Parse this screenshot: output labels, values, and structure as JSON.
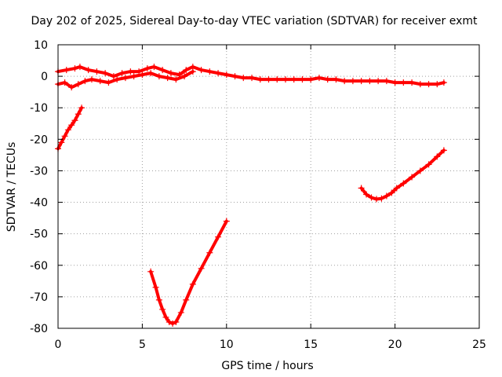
{
  "chart_data": {
    "type": "scatter",
    "title": "Day 202 of 2025, Sidereal Day-to-day VTEC variation (SDTVAR) for receiver exmt",
    "xlabel": "GPS time / hours",
    "ylabel": "SDTVAR / TECUs",
    "xlim": [
      0,
      25
    ],
    "ylim": [
      -80,
      10
    ],
    "xticks": [
      0,
      5,
      10,
      15,
      20,
      25
    ],
    "yticks": [
      10,
      0,
      -10,
      -20,
      -30,
      -40,
      -50,
      -60,
      -70,
      -80
    ],
    "grid": true,
    "legend": "none",
    "marker": "plus",
    "series_color": "#ff0000",
    "series": [
      {
        "name": "trace-near-zero-upper",
        "x": [
          0.0,
          0.5,
          1.0,
          1.3,
          1.8,
          2.3,
          2.8,
          3.3,
          3.8,
          4.3,
          4.8,
          5.3,
          5.7,
          6.2,
          6.7,
          7.2,
          7.6,
          8.0,
          8.5,
          9.0,
          9.5,
          10.0,
          10.5,
          11.0,
          11.5,
          12.0,
          12.5,
          13.0,
          13.5,
          14.0,
          14.5,
          15.0,
          15.5,
          16.0,
          16.5,
          17.0,
          17.5,
          18.0,
          18.5,
          19.0,
          19.5,
          20.0,
          20.5,
          21.0,
          21.5,
          22.0,
          22.5,
          22.9
        ],
        "y": [
          1.5,
          2.0,
          2.5,
          3.0,
          2.0,
          1.5,
          1.0,
          0.0,
          1.0,
          1.5,
          1.5,
          2.5,
          3.0,
          2.0,
          1.0,
          0.5,
          2.0,
          3.0,
          2.0,
          1.5,
          1.0,
          0.5,
          0.0,
          -0.5,
          -0.5,
          -1.0,
          -1.0,
          -1.0,
          -1.0,
          -1.0,
          -1.0,
          -1.0,
          -0.5,
          -1.0,
          -1.0,
          -1.5,
          -1.5,
          -1.5,
          -1.5,
          -1.5,
          -1.5,
          -2.0,
          -2.0,
          -2.0,
          -2.5,
          -2.5,
          -2.5,
          -2.0
        ]
      },
      {
        "name": "trace-near-zero-lower",
        "x": [
          0.0,
          0.4,
          0.8,
          1.2,
          1.6,
          2.0,
          2.5,
          3.0,
          3.5,
          4.0,
          4.5,
          5.0,
          5.5,
          6.0,
          6.5,
          7.0,
          7.5,
          8.0
        ],
        "y": [
          -2.5,
          -2.0,
          -3.5,
          -2.5,
          -1.5,
          -1.0,
          -1.5,
          -2.0,
          -1.0,
          -0.5,
          0.0,
          0.5,
          1.0,
          0.0,
          -0.5,
          -1.0,
          0.0,
          1.5
        ]
      },
      {
        "name": "trace-early-rise",
        "x": [
          0.0,
          0.2,
          0.4,
          0.6,
          0.8,
          1.0,
          1.2,
          1.4
        ],
        "y": [
          -23,
          -21,
          -19,
          -17,
          -15.5,
          -14,
          -12,
          -10
        ]
      },
      {
        "name": "trace-dip",
        "x": [
          5.5,
          5.8,
          6.0,
          6.2,
          6.4,
          6.6,
          6.8,
          7.0,
          7.3,
          7.6,
          8.0,
          8.5,
          9.0,
          9.5,
          10.0
        ],
        "y": [
          -62,
          -67,
          -71,
          -74,
          -76.5,
          -78,
          -78.5,
          -78,
          -75,
          -71,
          -66,
          -61,
          -56,
          -51,
          -46
        ]
      },
      {
        "name": "trace-late-curve",
        "x": [
          18.0,
          18.3,
          18.6,
          18.9,
          19.2,
          19.5,
          19.8,
          20.1,
          20.5,
          21.0,
          21.5,
          22.0,
          22.5,
          22.9
        ],
        "y": [
          -35.5,
          -37.5,
          -38.5,
          -39,
          -38.8,
          -38,
          -37,
          -35.5,
          -34,
          -32,
          -30,
          -28,
          -25.5,
          -23.5
        ]
      }
    ]
  }
}
